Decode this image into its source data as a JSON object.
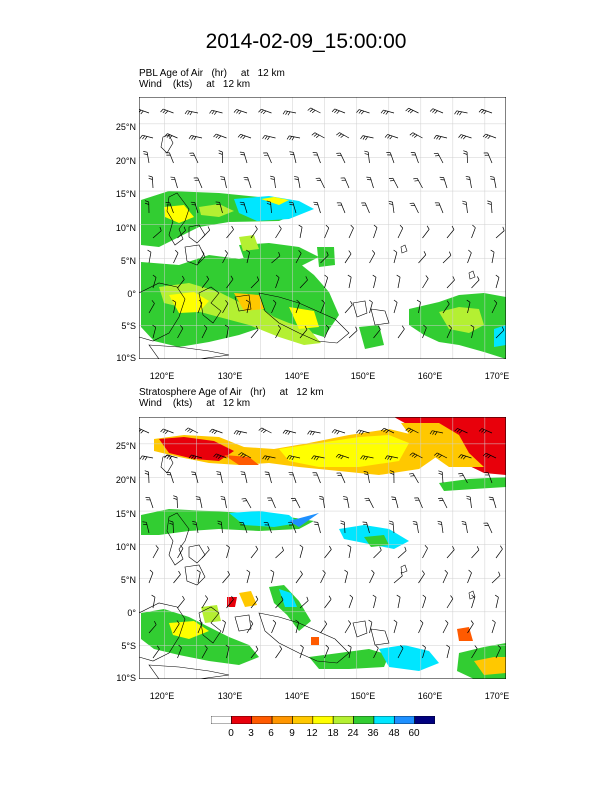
{
  "title": "2014-02-09_15:00:00",
  "panels": [
    {
      "line1": "PBL Age of Air   (hr)     at   12 km",
      "line2": "Wind    (kts)     at   12 km"
    },
    {
      "line1": "Stratosphere Age of Air   (hr)     at   12 km",
      "line2": "Wind    (kts)     at   12 km"
    }
  ],
  "lat_labels": [
    "25°N",
    "20°N",
    "15°N",
    "10°N",
    "5°N",
    "0°",
    "5°S",
    "10°S"
  ],
  "lon_labels": [
    "120°E",
    "130°E",
    "140°E",
    "150°E",
    "160°E",
    "170°E"
  ],
  "colorbar": {
    "labels": [
      "0",
      "3",
      "6",
      "9",
      "12",
      "18",
      "24",
      "36",
      "48",
      "60"
    ],
    "colors": [
      "#ffffff",
      "#e8000b",
      "#ff5a00",
      "#ff9600",
      "#ffc800",
      "#ffff00",
      "#b4f032",
      "#32cd32",
      "#00e6ff",
      "#1e90ff",
      "#00007f"
    ]
  },
  "fields": {
    "colors": {
      "green": "#32cd32",
      "light_green": "#b4f032",
      "yellow": "#ffff00",
      "gold": "#ffc800",
      "orange": "#ff9600",
      "red_orange": "#ff5a00",
      "red": "#e8000b",
      "cyan": "#00e6ff",
      "blue": "#1e90ff"
    }
  }
}
